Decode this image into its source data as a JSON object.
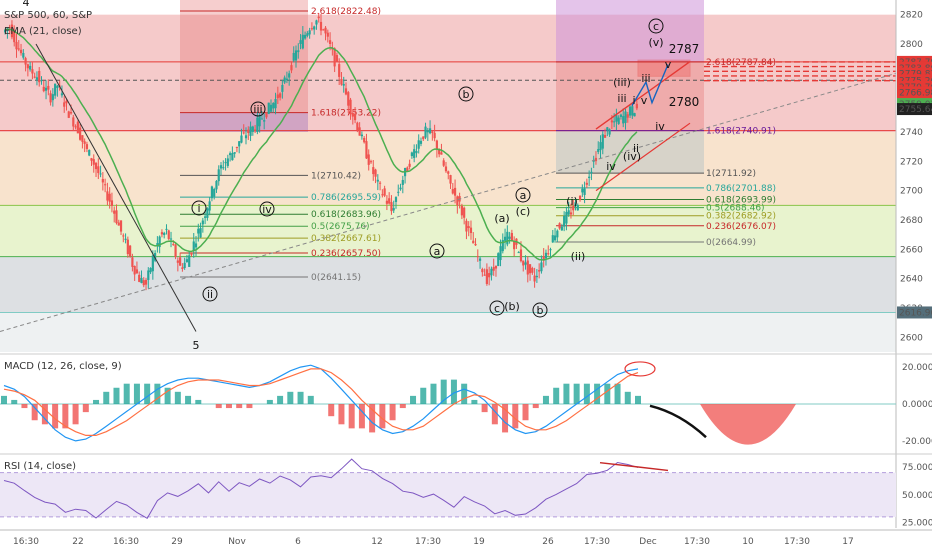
{
  "chart_data": [
    {
      "type": "candlestick",
      "title": "S&P 500, 60, S&P",
      "indicator": "EMA (21, close)",
      "ylim": [
        2590,
        2830
      ],
      "y_ticks": [
        2600,
        2620,
        2640,
        2660,
        2680,
        2700,
        2720,
        2740,
        2760,
        2780,
        2800,
        2820
      ],
      "x_tick_labels": [
        "16:30",
        "22",
        "16:30",
        "29",
        "Nov",
        "6",
        "12",
        "17:30",
        "19",
        "26",
        "17:30",
        "Dec",
        "17:30",
        "10",
        "17:30",
        "17"
      ],
      "price_tags": [
        {
          "value": "2787.79",
          "color": "#e53935"
        },
        {
          "value": "2783.80",
          "color": "#e53935"
        },
        {
          "value": "2779.82",
          "color": "#e53935"
        },
        {
          "value": "2775.26",
          "color": "#e53935"
        },
        {
          "value": "2770.70",
          "color": "#e53935"
        },
        {
          "value": "2766.98",
          "color": "#e53935"
        },
        {
          "value": "2759.02",
          "color": "#4caf50"
        },
        {
          "value": "2755.64",
          "color": "#222222"
        },
        {
          "value": "2616.96",
          "color": "#546e7a"
        }
      ],
      "close_path": [
        2808,
        2812,
        2800,
        2790,
        2782,
        2778,
        2770,
        2764,
        2772,
        2760,
        2750,
        2742,
        2730,
        2722,
        2712,
        2700,
        2690,
        2676,
        2664,
        2650,
        2640,
        2636,
        2654,
        2668,
        2672,
        2660,
        2648,
        2652,
        2664,
        2676,
        2690,
        2704,
        2716,
        2722,
        2728,
        2736,
        2740,
        2744,
        2750,
        2756,
        2762,
        2770,
        2782,
        2794,
        2804,
        2812,
        2816,
        2810,
        2798,
        2784,
        2770,
        2756,
        2744,
        2730,
        2716,
        2704,
        2696,
        2686,
        2700,
        2712,
        2724,
        2734,
        2740,
        2738,
        2726,
        2712,
        2700,
        2690,
        2676,
        2664,
        2650,
        2640,
        2646,
        2660,
        2670,
        2664,
        2654,
        2646,
        2640,
        2652,
        2660,
        2672,
        2678,
        2684,
        2690,
        2700,
        2712,
        2724,
        2736,
        2744,
        2748,
        2750,
        2754,
        2756
      ],
      "fib_left": [
        {
          "label": "2.618(2822.48)",
          "color": "#c62828"
        },
        {
          "label": "1.618(2753.22)",
          "color": "#c62828"
        },
        {
          "label": "1(2710.42)",
          "color": "#555555"
        },
        {
          "label": "0.786(2695.59)",
          "color": "#26a69a"
        },
        {
          "label": "0.618(2683.96)",
          "color": "#2e7d32"
        },
        {
          "label": "0.5(2675.76)",
          "color": "#43a047"
        },
        {
          "label": "0.382(2667.61)",
          "color": "#9e9d24"
        },
        {
          "label": "0.236(2657.50)",
          "color": "#c62828"
        },
        {
          "label": "0(2641.15)",
          "color": "#757575"
        }
      ],
      "fib_right": [
        {
          "label": "2.618(2787.84)",
          "color": "#c62828"
        },
        {
          "label": "1.618(2740.91)",
          "color": "#6a1b9a"
        },
        {
          "label": "1(2711.92)",
          "color": "#555555"
        },
        {
          "label": "0.786(2701.88)",
          "color": "#26a69a"
        },
        {
          "label": "0.618(2693.99)",
          "color": "#2e7d32"
        },
        {
          "label": "0.5(2688.46)",
          "color": "#43a047"
        },
        {
          "label": "0.382(2682.92)",
          "color": "#9e9d24"
        },
        {
          "label": "0.236(2676.07)",
          "color": "#c62828"
        },
        {
          "label": "0(2664.99)",
          "color": "#757575"
        }
      ],
      "wave_labels": [
        "4",
        "5",
        "i",
        "ii",
        "iii",
        "iv",
        "a",
        "b",
        "c",
        "(a)",
        "(b)",
        "(c)",
        "a",
        "b",
        "c",
        "(i)",
        "(ii)",
        "(iii)",
        "(iv)",
        "(v)",
        "i",
        "ii",
        "iii",
        "iv",
        "v",
        "iii",
        "iv",
        "v",
        "2787",
        "2780"
      ]
    },
    {
      "type": "line",
      "title": "MACD (12, 26, close, 9)",
      "y_ticks": [
        "20.0000",
        "0.0000",
        "-20.0000"
      ],
      "ylim": [
        -26,
        26
      ],
      "macd": [
        10,
        8,
        4,
        -2,
        -8,
        -14,
        -18,
        -20,
        -19,
        -16,
        -12,
        -8,
        -4,
        0,
        4,
        8,
        11,
        13,
        14,
        14,
        13,
        12,
        11,
        10,
        9,
        10,
        12,
        15,
        18,
        20,
        21,
        19,
        14,
        8,
        2,
        -4,
        -10,
        -14,
        -16,
        -15,
        -12,
        -8,
        -3,
        2,
        6,
        8,
        6,
        2,
        -4,
        -10,
        -14,
        -16,
        -15,
        -12,
        -8,
        -4,
        0,
        4,
        8,
        12,
        16,
        18,
        19
      ],
      "signal": [
        8,
        7,
        5,
        2,
        -3,
        -8,
        -12,
        -15,
        -17,
        -17,
        -15,
        -12,
        -9,
        -5,
        -1,
        3,
        7,
        10,
        12,
        13,
        13,
        13,
        12,
        11,
        10,
        10,
        11,
        13,
        15,
        17,
        19,
        19,
        17,
        13,
        8,
        2,
        -3,
        -8,
        -12,
        -14,
        -14,
        -12,
        -8,
        -4,
        0,
        3,
        5,
        4,
        1,
        -3,
        -8,
        -12,
        -14,
        -14,
        -12,
        -9,
        -5,
        -1,
        3,
        7,
        11,
        15,
        17
      ]
    },
    {
      "type": "line",
      "title": "RSI (14, close)",
      "y_ticks": [
        "75.0000",
        "50.0000",
        "25.0000"
      ],
      "ylim": [
        20,
        85
      ],
      "values": [
        62,
        58,
        55,
        50,
        45,
        40,
        36,
        38,
        34,
        30,
        36,
        42,
        38,
        34,
        30,
        45,
        52,
        48,
        55,
        58,
        54,
        60,
        56,
        62,
        58,
        64,
        60,
        66,
        62,
        58,
        64,
        70,
        68,
        74,
        80,
        76,
        70,
        64,
        58,
        54,
        50,
        46,
        50,
        44,
        40,
        46,
        42,
        38,
        32,
        36,
        30,
        34,
        40,
        46,
        52,
        56,
        60,
        66,
        70,
        74,
        78,
        76,
        72
      ]
    }
  ]
}
